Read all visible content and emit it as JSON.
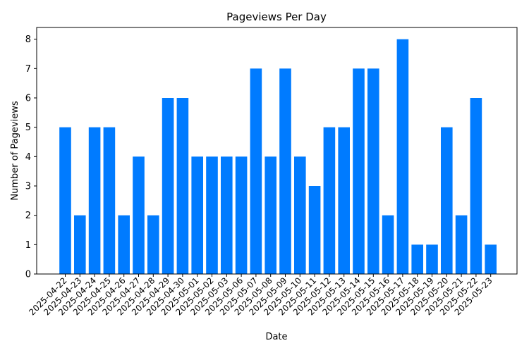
{
  "chart_data": {
    "type": "bar",
    "title": "Pageviews Per Day",
    "xlabel": "Date",
    "ylabel": "Number of Pageviews",
    "ylim": [
      0,
      8.4
    ],
    "yticks": [
      0,
      1,
      2,
      3,
      4,
      5,
      6,
      7,
      8
    ],
    "grid": false,
    "legend": "none",
    "bar_color": "#007bff",
    "categories": [
      "2025-04-22",
      "2025-04-23",
      "2025-04-24",
      "2025-04-25",
      "2025-04-26",
      "2025-04-27",
      "2025-04-28",
      "2025-04-29",
      "2025-04-30",
      "2025-05-01",
      "2025-05-02",
      "2025-05-03",
      "2025-05-06",
      "2025-05-07",
      "2025-05-08",
      "2025-05-09",
      "2025-05-10",
      "2025-05-11",
      "2025-05-12",
      "2025-05-13",
      "2025-05-14",
      "2025-05-15",
      "2025-05-16",
      "2025-05-17",
      "2025-05-18",
      "2025-05-19",
      "2025-05-20",
      "2025-05-21",
      "2025-05-22",
      "2025-05-23"
    ],
    "values": [
      5,
      2,
      5,
      5,
      2,
      4,
      2,
      6,
      6,
      4,
      4,
      4,
      4,
      7,
      4,
      7,
      4,
      3,
      5,
      5,
      7,
      7,
      2,
      8,
      1,
      1,
      5,
      2,
      6,
      1
    ]
  }
}
